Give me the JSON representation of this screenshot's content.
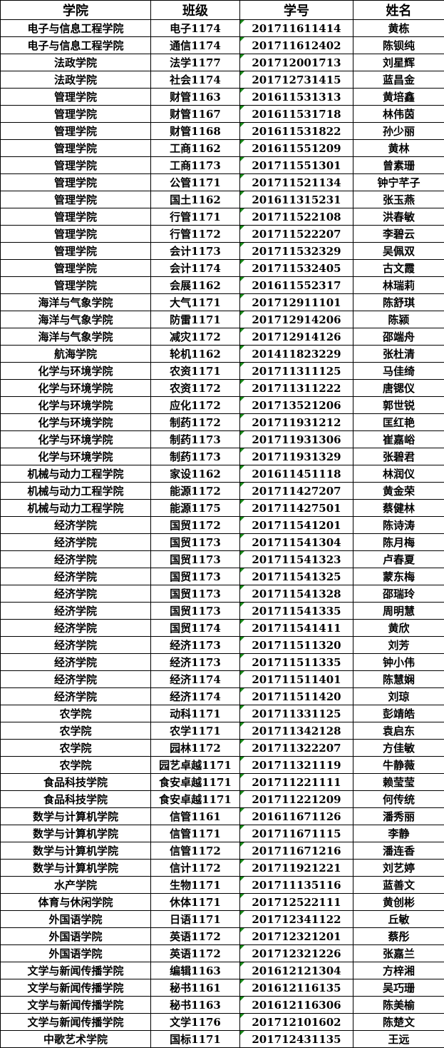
{
  "table": {
    "headers": [
      "学院",
      "班级",
      "学号",
      "姓名"
    ],
    "indicator_color": "#1a8a1a",
    "rows": [
      [
        "电子与信息工程学院",
        "电子1174",
        "201711611414",
        "黄栋"
      ],
      [
        "电子与信息工程学院",
        "通信1174",
        "201711612402",
        "陈钡纯"
      ],
      [
        "法政学院",
        "法学1177",
        "201712001713",
        "刘星辉"
      ],
      [
        "法政学院",
        "社会1174",
        "201712731415",
        "蓝昌金"
      ],
      [
        "管理学院",
        "财管1163",
        "201611531313",
        "黄培鑫"
      ],
      [
        "管理学院",
        "财管1167",
        "201611531718",
        "林伟茵"
      ],
      [
        "管理学院",
        "财管1168",
        "201611531822",
        "孙少丽"
      ],
      [
        "管理学院",
        "工商1162",
        "201611551209",
        "黄林"
      ],
      [
        "管理学院",
        "工商1173",
        "201711551301",
        "曾素珊"
      ],
      [
        "管理学院",
        "公管1171",
        "201711521134",
        "钟宁芊子"
      ],
      [
        "管理学院",
        "国土1162",
        "201611315231",
        "张玉燕"
      ],
      [
        "管理学院",
        "行管1171",
        "201711522108",
        "洪春敏"
      ],
      [
        "管理学院",
        "行管1172",
        "201711522207",
        "李碧云"
      ],
      [
        "管理学院",
        "会计1173",
        "201711532329",
        "吴佩双"
      ],
      [
        "管理学院",
        "会计1174",
        "201711532405",
        "古文霞"
      ],
      [
        "管理学院",
        "会展1162",
        "201611552317",
        "林瑞莉"
      ],
      [
        "海洋与气象学院",
        "大气1171",
        "201712911101",
        "陈舒琪"
      ],
      [
        "海洋与气象学院",
        "防雷1171",
        "201712914206",
        "陈颍"
      ],
      [
        "海洋与气象学院",
        "减灾1172",
        "201712914126",
        "邵端舟"
      ],
      [
        "航海学院",
        "轮机1162",
        "201411823229",
        "张杜清"
      ],
      [
        "化学与环境学院",
        "农资1171",
        "201711311125",
        "马佳绮"
      ],
      [
        "化学与环境学院",
        "农资1172",
        "201711311222",
        "唐锶仪"
      ],
      [
        "化学与环境学院",
        "应化1172",
        "201713521206",
        "郭世锐"
      ],
      [
        "化学与环境学院",
        "制药1172",
        "201711931212",
        "匡红艳"
      ],
      [
        "化学与环境学院",
        "制药1173",
        "201711931306",
        "崔嘉峪"
      ],
      [
        "化学与环境学院",
        "制药1173",
        "201711931329",
        "张碧君"
      ],
      [
        "机械与动力工程学院",
        "家设1162",
        "201611451118",
        "林润仪"
      ],
      [
        "机械与动力工程学院",
        "能源1172",
        "201711427207",
        "黄金荣"
      ],
      [
        "机械与动力工程学院",
        "能源1175",
        "201711427501",
        "蔡健林"
      ],
      [
        "经济学院",
        "国贸1172",
        "201711541201",
        "陈诗涛"
      ],
      [
        "经济学院",
        "国贸1173",
        "201711541304",
        "陈月梅"
      ],
      [
        "经济学院",
        "国贸1173",
        "201711541323",
        "卢春夏"
      ],
      [
        "经济学院",
        "国贸1173",
        "201711541325",
        "蒙东梅"
      ],
      [
        "经济学院",
        "国贸1173",
        "201711541328",
        "邵瑞玲"
      ],
      [
        "经济学院",
        "国贸1173",
        "201711541335",
        "周明慧"
      ],
      [
        "经济学院",
        "国贸1174",
        "201711541411",
        "黄欣"
      ],
      [
        "经济学院",
        "经济1173",
        "201711511320",
        "刘芳"
      ],
      [
        "经济学院",
        "经济1173",
        "201711511335",
        "钟小伟"
      ],
      [
        "经济学院",
        "经济1174",
        "201711511401",
        "陈慧娴"
      ],
      [
        "经济学院",
        "经济1174",
        "201711511420",
        "刘琼"
      ],
      [
        "农学院",
        "动科1171",
        "201711331125",
        "彭靖皓"
      ],
      [
        "农学院",
        "农学1171",
        "201711342128",
        "袁启东"
      ],
      [
        "农学院",
        "园林1172",
        "201711322207",
        "方佳敏"
      ],
      [
        "农学院",
        "园艺卓越1171",
        "201711321119",
        "牛静薇"
      ],
      [
        "食品科技学院",
        "食安卓越1171",
        "201711221111",
        "赖莹莹"
      ],
      [
        "食品科技学院",
        "食安卓越1171",
        "201711221209",
        "何传统"
      ],
      [
        "数学与计算机学院",
        "信管1161",
        "201611671126",
        "潘秀丽"
      ],
      [
        "数学与计算机学院",
        "信管1171",
        "201711671115",
        "李静"
      ],
      [
        "数学与计算机学院",
        "信管1172",
        "201711671216",
        "潘连香"
      ],
      [
        "数学与计算机学院",
        "信计1172",
        "201711921221",
        "刘艺婷"
      ],
      [
        "水产学院",
        "生物1171",
        "201711135116",
        "蓝善文"
      ],
      [
        "体育与休闲学院",
        "休体1171",
        "201712522111",
        "黄创彬"
      ],
      [
        "外国语学院",
        "日语1171",
        "201712341122",
        "丘敏"
      ],
      [
        "外国语学院",
        "英语1172",
        "201712321201",
        "蔡彤"
      ],
      [
        "外国语学院",
        "英语1172",
        "201712321226",
        "张嘉兰"
      ],
      [
        "文学与新闻传播学院",
        "编辑1163",
        "201612121304",
        "方梓湘"
      ],
      [
        "文学与新闻传播学院",
        "秘书1161",
        "201612116135",
        "吴巧珊"
      ],
      [
        "文学与新闻传播学院",
        "秘书1163",
        "201612116306",
        "陈美榆"
      ],
      [
        "文学与新闻传播学院",
        "文学1176",
        "201712101602",
        "陈楚文"
      ],
      [
        "中歌艺术学院",
        "国标1171",
        "201712431135",
        "王远"
      ]
    ]
  }
}
